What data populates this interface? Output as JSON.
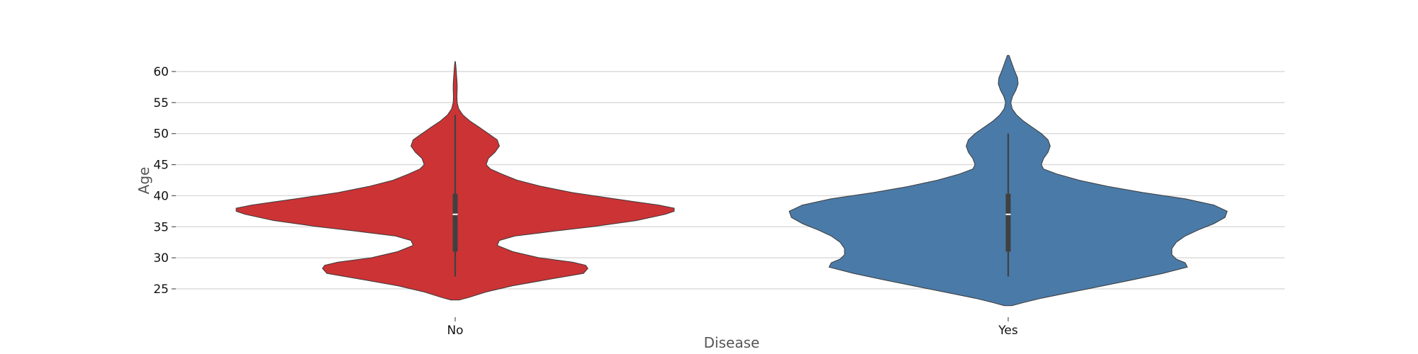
{
  "chart_data": {
    "type": "violin",
    "title": "",
    "xlabel": "Disease",
    "ylabel": "Age",
    "categories": [
      "No",
      "Yes"
    ],
    "ylim": [
      22,
      63
    ],
    "yticks": [
      25,
      30,
      35,
      40,
      45,
      50,
      55,
      60
    ],
    "grid": "horizontal",
    "series": [
      {
        "category": "No",
        "color": "#cb3335",
        "box": {
          "whisker_low": 27,
          "q1": 31,
          "median": 37,
          "q3": 40.3,
          "whisker_high": 53
        },
        "density": [
          [
            23.2,
            0.018
          ],
          [
            23.6,
            0.06
          ],
          [
            24.5,
            0.14
          ],
          [
            25.5,
            0.26
          ],
          [
            26.5,
            0.42
          ],
          [
            27.5,
            0.58
          ],
          [
            28.3,
            0.6
          ],
          [
            28.8,
            0.59
          ],
          [
            29.3,
            0.53
          ],
          [
            30,
            0.38
          ],
          [
            31,
            0.26
          ],
          [
            32,
            0.19
          ],
          [
            32.8,
            0.2
          ],
          [
            33.5,
            0.27
          ],
          [
            34.3,
            0.45
          ],
          [
            35,
            0.62
          ],
          [
            36,
            0.82
          ],
          [
            37,
            0.95
          ],
          [
            37.5,
            0.99
          ],
          [
            38,
            0.99
          ],
          [
            38.5,
            0.92
          ],
          [
            39.5,
            0.72
          ],
          [
            40.5,
            0.53
          ],
          [
            41.5,
            0.39
          ],
          [
            42.5,
            0.28
          ],
          [
            43.5,
            0.21
          ],
          [
            44.3,
            0.16
          ],
          [
            45,
            0.14
          ],
          [
            46,
            0.15
          ],
          [
            47,
            0.18
          ],
          [
            48,
            0.2
          ],
          [
            49,
            0.19
          ],
          [
            50,
            0.15
          ],
          [
            51,
            0.11
          ],
          [
            52,
            0.068
          ],
          [
            53,
            0.035
          ],
          [
            54,
            0.016
          ],
          [
            55,
            0.009
          ],
          [
            56,
            0.008
          ],
          [
            57,
            0.009
          ],
          [
            58,
            0.009
          ],
          [
            59,
            0.007
          ],
          [
            60,
            0.005
          ],
          [
            61,
            0.003
          ],
          [
            61.6,
            0.001
          ]
        ]
      },
      {
        "category": "Yes",
        "color": "#4a7aa7",
        "box": {
          "whisker_low": 27,
          "q1": 31,
          "median": 37,
          "q3": 40.3,
          "whisker_high": 50
        },
        "density": [
          [
            22.3,
            0.018
          ],
          [
            22.8,
            0.07
          ],
          [
            23.5,
            0.15
          ],
          [
            24.5,
            0.29
          ],
          [
            25.5,
            0.43
          ],
          [
            26.5,
            0.57
          ],
          [
            27.5,
            0.7
          ],
          [
            28.5,
            0.81
          ],
          [
            29.2,
            0.8
          ],
          [
            29.8,
            0.76
          ],
          [
            30.5,
            0.74
          ],
          [
            31.5,
            0.74
          ],
          [
            32.5,
            0.76
          ],
          [
            33.5,
            0.8
          ],
          [
            34.5,
            0.86
          ],
          [
            35.5,
            0.93
          ],
          [
            36.5,
            0.98
          ],
          [
            37.5,
            0.99
          ],
          [
            38.5,
            0.93
          ],
          [
            39.5,
            0.8
          ],
          [
            40.5,
            0.61
          ],
          [
            41.5,
            0.45
          ],
          [
            42.5,
            0.32
          ],
          [
            43.5,
            0.22
          ],
          [
            44.3,
            0.16
          ],
          [
            45,
            0.15
          ],
          [
            46,
            0.16
          ],
          [
            47,
            0.18
          ],
          [
            48,
            0.19
          ],
          [
            49,
            0.18
          ],
          [
            50,
            0.15
          ],
          [
            51,
            0.11
          ],
          [
            52,
            0.07
          ],
          [
            53,
            0.038
          ],
          [
            54,
            0.018
          ],
          [
            55,
            0.012
          ],
          [
            56,
            0.02
          ],
          [
            57,
            0.035
          ],
          [
            58,
            0.045
          ],
          [
            59,
            0.042
          ],
          [
            60,
            0.03
          ],
          [
            61,
            0.02
          ],
          [
            62,
            0.01
          ],
          [
            62.6,
            0.004
          ]
        ]
      }
    ]
  }
}
